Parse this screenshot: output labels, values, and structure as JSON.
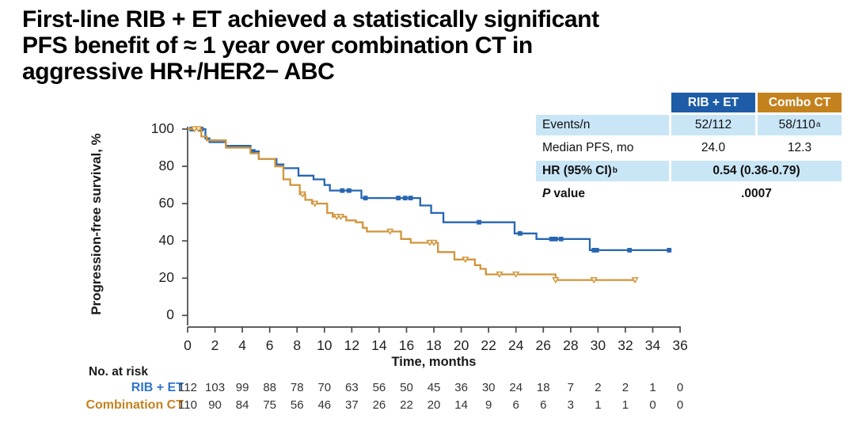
{
  "title": {
    "line1": "First-line RIB + ET achieved a statistically significant",
    "line2": "PFS benefit of ≈ 1 year over combination CT in",
    "line3": "aggressive HR+/HER2− ABC"
  },
  "colors": {
    "header_blue": "#1E5CA8",
    "header_orange": "#C4821E",
    "light_blue_row": "#C9E6F7",
    "curve_blue": "#2766B1",
    "curve_orange": "#D0953B",
    "risk_label_blue": "#2E74C9",
    "risk_label_orange": "#C5821F"
  },
  "stats_table": {
    "col_headers": [
      "RIB + ET",
      "Combo CT"
    ],
    "rows": [
      {
        "label": "Events/n",
        "v1": "52/112",
        "v2": "58/110",
        "v2_sup": "a"
      },
      {
        "label": "Median PFS, mo",
        "v1": "24.0",
        "v2": "12.3"
      },
      {
        "label": "HR (95% CI)",
        "label_sup": "b",
        "value_span": "0.54 (0.36-0.79)"
      },
      {
        "label_italic": "P",
        "label_rest": "value",
        "value_span": ".0007"
      }
    ]
  },
  "chart_data": {
    "type": "line",
    "subtype": "kaplan-meier-step",
    "xlabel": "Time, months",
    "ylabel": "Progression-free survival, %",
    "xlim": [
      0,
      36
    ],
    "ylim": [
      0,
      100
    ],
    "x_ticks": [
      0,
      2,
      4,
      6,
      8,
      10,
      12,
      14,
      16,
      18,
      20,
      22,
      24,
      26,
      28,
      30,
      32,
      34,
      36
    ],
    "y_ticks": [
      0,
      20,
      40,
      60,
      80,
      100
    ],
    "grid": false,
    "legend_position": "none",
    "series": [
      {
        "name": "RIB + ET",
        "css": "rib-et",
        "color": "#2766B1",
        "marker": "filled-square",
        "median_pfs_months": 24.0,
        "points": [
          [
            0,
            100
          ],
          [
            1.3,
            95
          ],
          [
            1.6,
            93
          ],
          [
            2.8,
            91
          ],
          [
            4.6,
            88
          ],
          [
            5.2,
            84
          ],
          [
            6.5,
            81
          ],
          [
            7.0,
            79
          ],
          [
            8.1,
            75
          ],
          [
            9.2,
            73
          ],
          [
            10.0,
            70
          ],
          [
            10.4,
            67
          ],
          [
            12.7,
            63
          ],
          [
            17.0,
            59
          ],
          [
            17.8,
            55
          ],
          [
            18.7,
            50
          ],
          [
            23.9,
            44
          ],
          [
            25.5,
            41
          ],
          [
            29.4,
            35
          ],
          [
            35.2,
            35
          ]
        ],
        "censor_marks": [
          [
            0.3,
            100
          ],
          [
            1.0,
            100
          ],
          [
            4.8,
            88
          ],
          [
            11.3,
            67
          ],
          [
            11.8,
            67
          ],
          [
            13.0,
            63
          ],
          [
            15.4,
            63
          ],
          [
            15.9,
            63
          ],
          [
            16.3,
            63
          ],
          [
            21.3,
            50
          ],
          [
            24.3,
            44
          ],
          [
            26.6,
            41
          ],
          [
            26.9,
            41
          ],
          [
            27.3,
            41
          ],
          [
            29.7,
            35
          ],
          [
            29.9,
            35
          ],
          [
            32.3,
            35
          ],
          [
            35.2,
            35
          ]
        ]
      },
      {
        "name": "Combination CT",
        "css": "combo-ct",
        "color": "#D0953B",
        "marker": "open-triangle-down",
        "median_pfs_months": 12.3,
        "points": [
          [
            0,
            100
          ],
          [
            1.0,
            96
          ],
          [
            1.4,
            94
          ],
          [
            2.8,
            90
          ],
          [
            4.6,
            87
          ],
          [
            5.2,
            84
          ],
          [
            6.4,
            80
          ],
          [
            7.0,
            73
          ],
          [
            7.5,
            70
          ],
          [
            8.2,
            65
          ],
          [
            8.6,
            62
          ],
          [
            9.1,
            60
          ],
          [
            10.2,
            55
          ],
          [
            10.6,
            53
          ],
          [
            11.6,
            51
          ],
          [
            12.3,
            50
          ],
          [
            12.8,
            47
          ],
          [
            13.1,
            45
          ],
          [
            15.6,
            41
          ],
          [
            16.3,
            39
          ],
          [
            18.3,
            34
          ],
          [
            19.5,
            30
          ],
          [
            21.0,
            27
          ],
          [
            21.4,
            25
          ],
          [
            21.8,
            22
          ],
          [
            26.9,
            19
          ],
          [
            32.7,
            19
          ]
        ],
        "censor_marks": [
          [
            0.5,
            100
          ],
          [
            0.8,
            100
          ],
          [
            8.4,
            65
          ],
          [
            9.3,
            60
          ],
          [
            10.9,
            53
          ],
          [
            11.2,
            53
          ],
          [
            14.8,
            45
          ],
          [
            17.7,
            39
          ],
          [
            18.0,
            39
          ],
          [
            20.3,
            30
          ],
          [
            22.8,
            22
          ],
          [
            24.0,
            22
          ],
          [
            26.9,
            19
          ],
          [
            29.7,
            19
          ],
          [
            32.7,
            19
          ]
        ]
      }
    ]
  },
  "at_risk": {
    "heading": "No. at risk",
    "rows": [
      {
        "label": "RIB + ET",
        "color": "#2E74C9",
        "counts": [
          112,
          103,
          99,
          88,
          78,
          70,
          63,
          56,
          50,
          45,
          36,
          30,
          24,
          18,
          7,
          2,
          2,
          1,
          0
        ]
      },
      {
        "label": "Combination CT",
        "color": "#C5821F",
        "counts": [
          110,
          90,
          84,
          75,
          56,
          46,
          37,
          26,
          22,
          20,
          14,
          9,
          6,
          6,
          3,
          1,
          1,
          0,
          0
        ]
      }
    ]
  }
}
